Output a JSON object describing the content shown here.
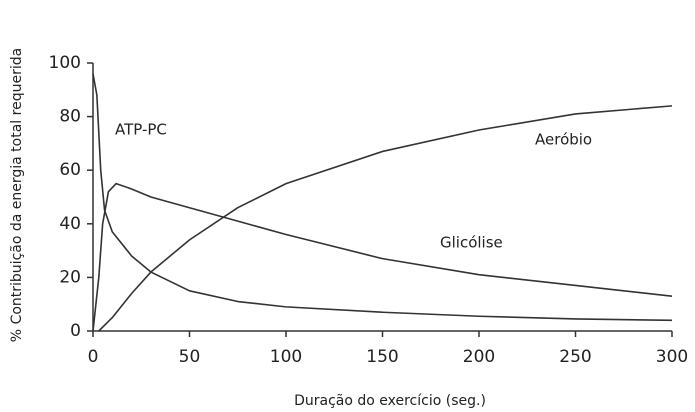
{
  "chart_data": {
    "type": "line",
    "xlabel": "Duração do exercício (seg.)",
    "ylabel": "% Contribuição da energia total requerida",
    "xlim": [
      0,
      300
    ],
    "xticks": [
      0,
      50,
      100,
      150,
      200,
      250,
      300
    ],
    "ylim": [
      0,
      100
    ],
    "yticks": [
      0,
      20,
      40,
      60,
      80,
      100
    ],
    "color": "#333333",
    "series": [
      {
        "name": "ATP-PC",
        "color": "#333333",
        "x": [
          0,
          2,
          4,
          6,
          10,
          20,
          30,
          50,
          75,
          100,
          150,
          200,
          250,
          300
        ],
        "values": [
          96,
          88,
          60,
          45,
          37,
          28,
          22,
          15,
          11,
          9,
          7,
          5.5,
          4.5,
          4
        ]
      },
      {
        "name": "Aeróbio",
        "color": "#333333",
        "x": [
          3,
          10,
          20,
          30,
          50,
          75,
          100,
          150,
          200,
          250,
          300
        ],
        "values": [
          0,
          5,
          14,
          22,
          34,
          46,
          55,
          67,
          75,
          81,
          84
        ]
      },
      {
        "name": "Glicólise",
        "color": "#333333",
        "x": [
          0,
          3,
          5,
          8,
          12,
          20,
          30,
          50,
          75,
          100,
          150,
          200,
          250,
          300
        ],
        "values": [
          0,
          20,
          40,
          52,
          55,
          53,
          50,
          46,
          41,
          36,
          27,
          21,
          17,
          13
        ]
      }
    ]
  }
}
